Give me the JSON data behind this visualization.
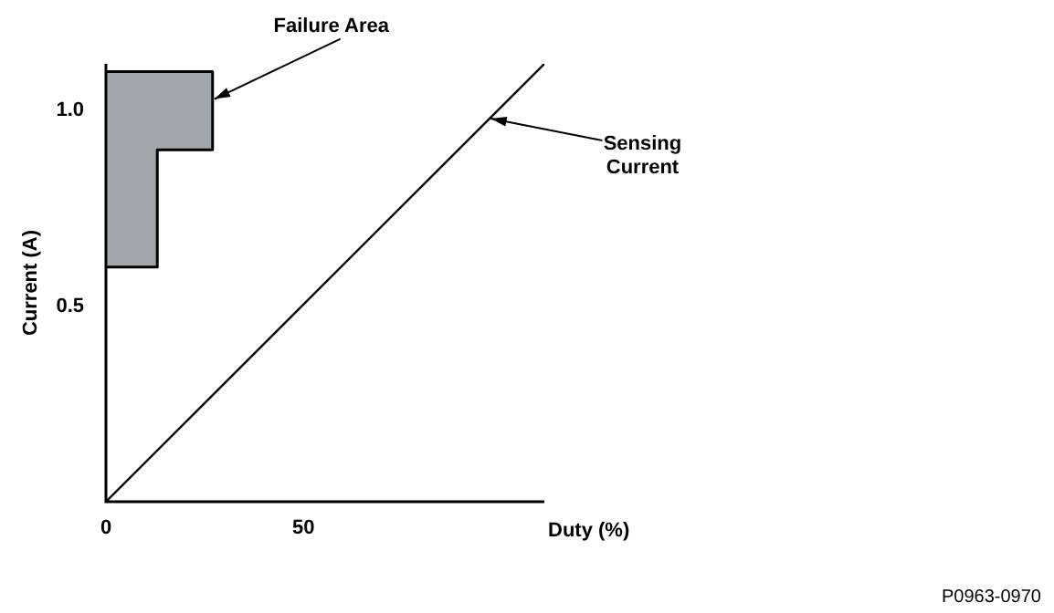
{
  "chart_data": {
    "type": "line",
    "xlabel": "Duty (%)",
    "ylabel": "Current (A)",
    "xlim": [
      0,
      111
    ],
    "ylim": [
      0,
      1.12
    ],
    "xticks": [
      0,
      50
    ],
    "yticks": [
      0.5,
      {
        "value": 1,
        "label": "1.0"
      }
    ],
    "grid": false,
    "legend": false,
    "marker": "none",
    "series": [
      {
        "type": "area",
        "color": "#a2a6aa",
        "x": [
          0,
          27,
          27,
          13,
          13,
          0
        ],
        "values": [
          1.1,
          1.1,
          0.9,
          0.9,
          0.6,
          0.6
        ]
      },
      {
        "type": "line",
        "color": "#000000",
        "x": [
          0,
          111
        ],
        "values": [
          0,
          1.12
        ]
      }
    ],
    "annotations": [
      {
        "text": "Failure Area",
        "x": 27,
        "y": 1.03
      },
      {
        "text": "Sensing Current",
        "x": 97,
        "y": 0.98
      },
      "P0963-0970"
    ]
  }
}
